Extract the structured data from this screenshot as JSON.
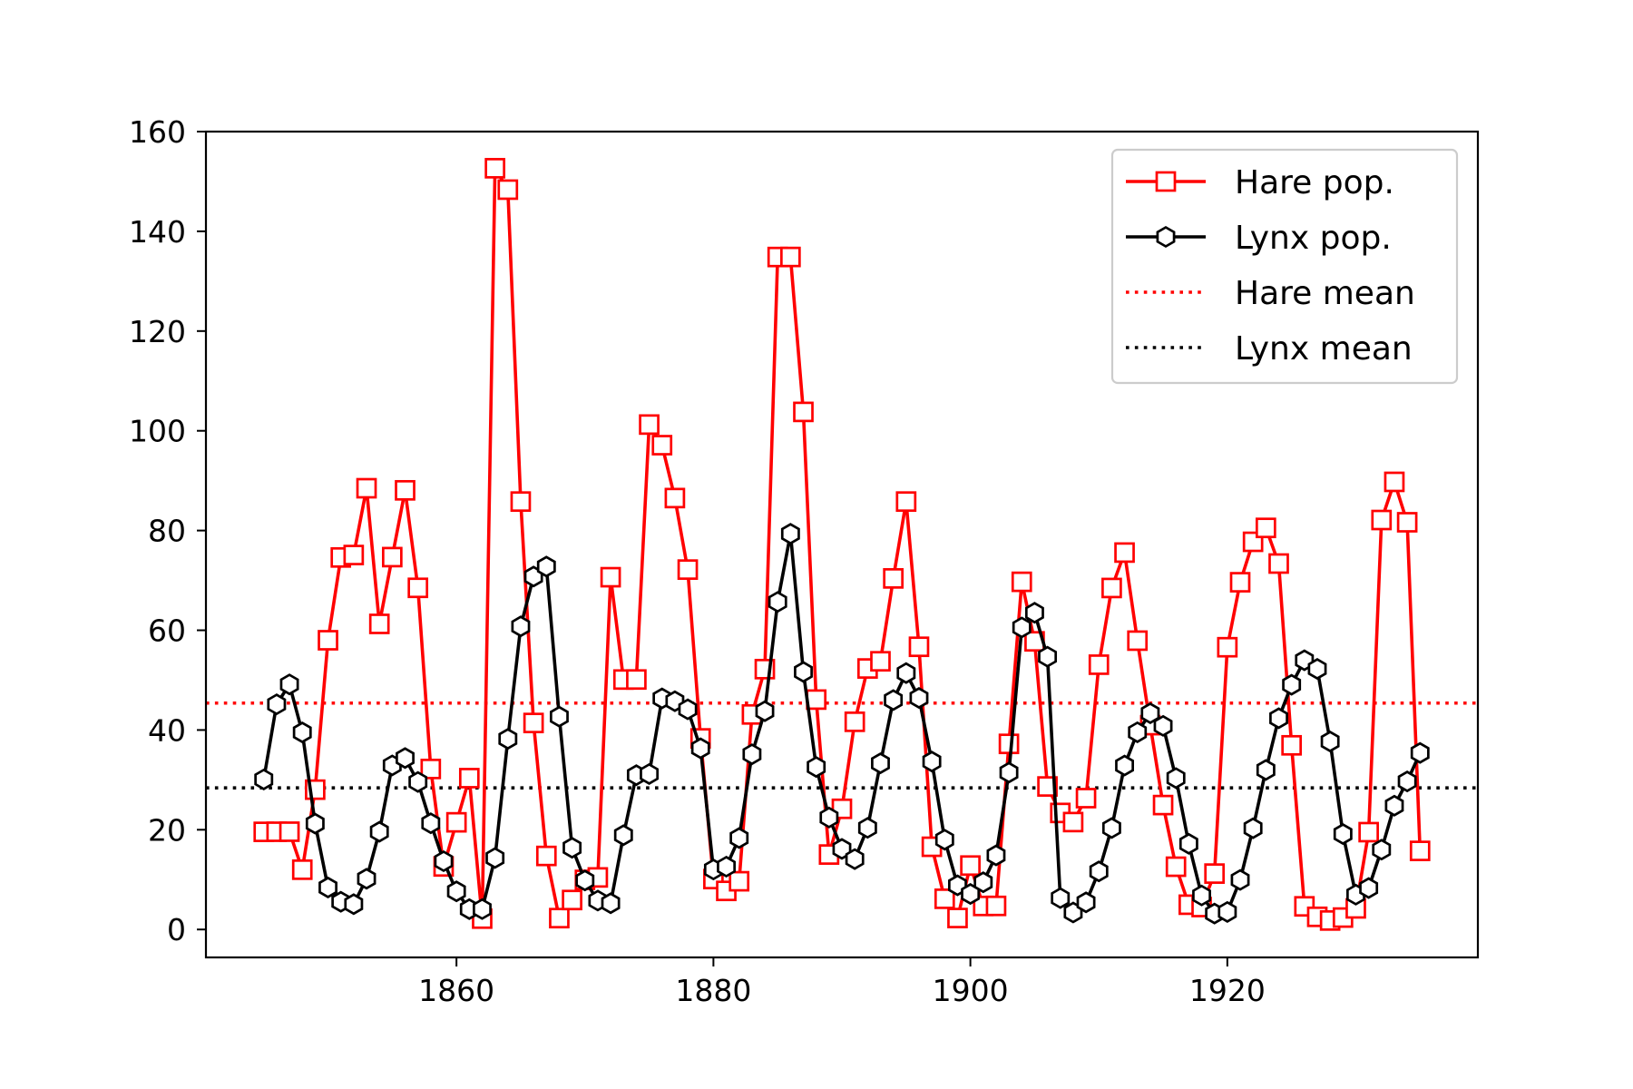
{
  "chart_data": {
    "type": "line",
    "title": "",
    "xlabel": "",
    "ylabel": "",
    "x_start": 1845,
    "xlim": [
      1840.5,
      1939.5
    ],
    "ylim": [
      -5.6,
      160
    ],
    "xticks": [
      1860,
      1880,
      1900,
      1920
    ],
    "yticks": [
      0,
      20,
      40,
      60,
      80,
      100,
      120,
      140,
      160
    ],
    "grid": false,
    "legend_position": "top-right",
    "series": [
      {
        "name": "Hare pop.",
        "color": "#ff0000",
        "marker": "square",
        "values": [
          19.58,
          19.6,
          19.61,
          11.99,
          28.04,
          58.0,
          74.6,
          75.09,
          88.48,
          61.28,
          74.67,
          88.06,
          68.51,
          32.19,
          12.64,
          21.49,
          30.35,
          2.18,
          152.65,
          148.36,
          85.81,
          41.41,
          14.75,
          2.28,
          5.91,
          9.95,
          10.44,
          70.64,
          50.12,
          50.13,
          101.25,
          97.12,
          86.51,
          72.17,
          38.32,
          10.11,
          7.74,
          9.67,
          43.12,
          52.21,
          134.85,
          134.86,
          103.79,
          46.1,
          15.03,
          24.2,
          41.65,
          52.34,
          53.78,
          70.4,
          85.81,
          56.69,
          16.59,
          6.16,
          2.3,
          12.82,
          4.72,
          4.73,
          37.22,
          69.72,
          57.78,
          28.68,
          23.37,
          21.54,
          26.34,
          53.1,
          68.48,
          75.58,
          57.92,
          40.97,
          24.95,
          12.59,
          4.97,
          4.5,
          11.21,
          56.6,
          69.63,
          77.74,
          80.53,
          73.38,
          36.93,
          4.64,
          2.54,
          1.8,
          2.39,
          4.23,
          19.52,
          82.11,
          89.76,
          81.66,
          15.76
        ]
      },
      {
        "name": "Lynx pop.",
        "color": "#000000",
        "marker": "hexagon",
        "values": [
          30.09,
          45.15,
          49.15,
          39.52,
          21.23,
          8.42,
          5.56,
          5.08,
          10.17,
          19.6,
          32.91,
          34.38,
          29.59,
          21.3,
          13.69,
          7.65,
          4.08,
          4.09,
          14.33,
          38.22,
          60.78,
          70.77,
          72.77,
          42.68,
          16.39,
          9.83,
          5.8,
          5.26,
          18.91,
          30.95,
          31.18,
          46.34,
          45.77,
          44.15,
          36.33,
          12.03,
          12.6,
          18.34,
          35.14,
          43.77,
          65.69,
          79.35,
          51.65,
          32.59,
          22.45,
          16.16,
          14.12,
          20.38,
          33.33,
          46.0,
          51.41,
          46.43,
          33.68,
          18.01,
          8.86,
          7.13,
          9.47,
          14.86,
          31.47,
          60.57,
          63.51,
          54.7,
          6.3,
          3.41,
          5.44,
          11.65,
          20.35,
          32.88,
          39.55,
          43.36,
          40.83,
          30.36,
          17.18,
          6.82,
          3.19,
          3.52,
          9.94,
          20.3,
          31.99,
          42.36,
          49.08,
          53.99,
          52.25,
          37.7,
          19.14,
          6.98,
          8.31,
          16.01,
          24.82,
          29.7,
          35.4
        ]
      }
    ],
    "reference_lines": [
      {
        "name": "Hare mean",
        "y": 45.4,
        "color": "#ff0000",
        "style": "dotted"
      },
      {
        "name": "Lynx mean",
        "y": 28.4,
        "color": "#000000",
        "style": "dotted"
      }
    ]
  }
}
